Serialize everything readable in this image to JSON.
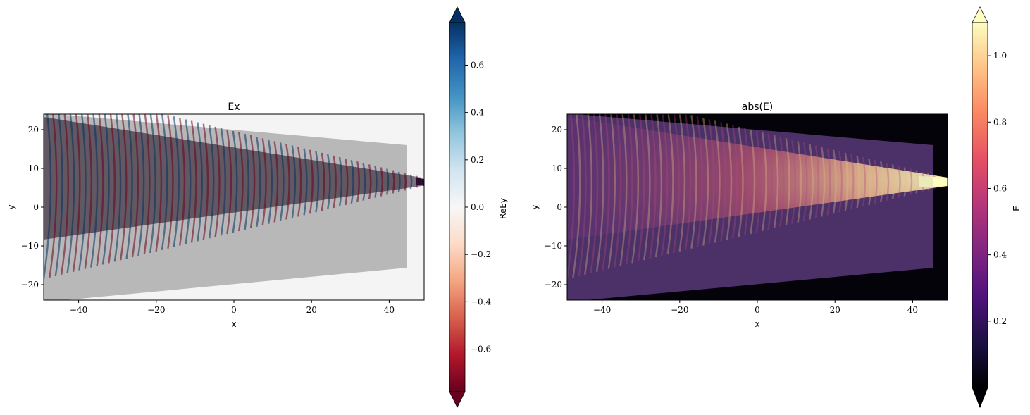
{
  "chart_data": [
    {
      "type": "heatmap",
      "title": "Ex",
      "xlabel": "x",
      "ylabel": "y",
      "xlim": [
        -49,
        49
      ],
      "ylim": [
        -24,
        24
      ],
      "xticks": [
        -40,
        -20,
        0,
        20,
        40
      ],
      "yticks": [
        -20,
        -10,
        0,
        10,
        20
      ],
      "xtick_labels": [
        "−40",
        "−20",
        "0",
        "20",
        "40"
      ],
      "ytick_labels": [
        "−20",
        "−10",
        "0",
        "10",
        "20"
      ],
      "colormap": "RdBu",
      "colorbar": {
        "label": "ReEy",
        "range": [
          -0.78,
          0.78
        ],
        "ticks": [
          -0.6,
          -0.4,
          -0.2,
          0.0,
          0.2,
          0.4,
          0.6
        ],
        "tick_labels": [
          "−0.6",
          "−0.4",
          "−0.2",
          "0.0",
          "0.2",
          "0.4",
          "0.6"
        ],
        "extend": "both"
      }
    },
    {
      "type": "heatmap",
      "title": "abs(E)",
      "xlabel": "x",
      "ylabel": "y",
      "xlim": [
        -49,
        49
      ],
      "ylim": [
        -24,
        24
      ],
      "xticks": [
        -40,
        -20,
        0,
        20,
        40
      ],
      "yticks": [
        -20,
        -10,
        0,
        10,
        20
      ],
      "xtick_labels": [
        "−40",
        "−20",
        "0",
        "20",
        "40"
      ],
      "ytick_labels": [
        "−20",
        "−10",
        "0",
        "10",
        "20"
      ],
      "colormap": "magma",
      "colorbar": {
        "label": "—E—",
        "range": [
          0.0,
          1.1
        ],
        "ticks": [
          0.2,
          0.4,
          0.6,
          0.8,
          1.0
        ],
        "tick_labels": [
          "0.2",
          "0.4",
          "0.6",
          "0.8",
          "1.0"
        ],
        "extend": "both"
      }
    }
  ],
  "colors": {
    "rdbu": [
      "#67001f",
      "#b2182b",
      "#d6604d",
      "#f4a582",
      "#fddbc7",
      "#f7f7f7",
      "#d1e5f0",
      "#92c5de",
      "#4393c3",
      "#2166ac",
      "#053061"
    ],
    "magma": [
      "#000004",
      "#1c1044",
      "#4f127b",
      "#812581",
      "#b5367a",
      "#e55064",
      "#fb8761",
      "#fec287",
      "#fcfdbf"
    ],
    "device_overlay": "#b0b0b0"
  }
}
